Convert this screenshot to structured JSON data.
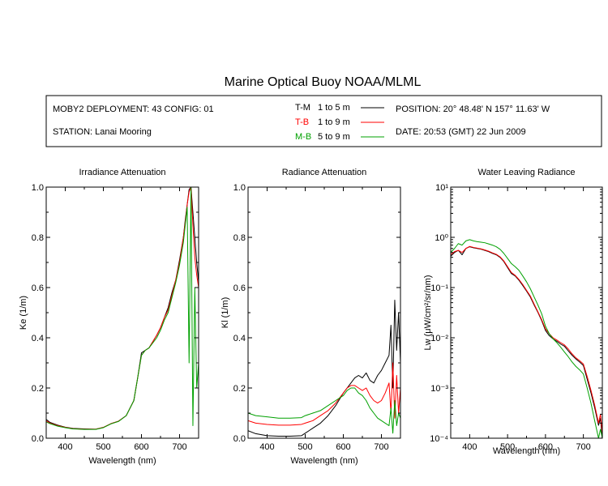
{
  "title": "Marine Optical Buoy NOAA/MLML",
  "info": {
    "deployment": "MOBY2 DEPLOYMENT: 43 CONFIG: 01",
    "station": "STATION: Lanai Mooring",
    "position": "POSITION: 20° 48.48' N   157° 11.63' W",
    "date": "DATE: 20:53 (GMT) 22 Jun 2009"
  },
  "legend": [
    {
      "code": "T-M",
      "range": "1 to 5  m",
      "color": "#000000"
    },
    {
      "code": "T-B",
      "range": "1 to 9  m",
      "color": "#ff0000"
    },
    {
      "code": "M-B",
      "range": "5 to 9  m",
      "color": "#00a000"
    }
  ],
  "chart_data": [
    {
      "type": "line",
      "title": "Irradiance Attenuation",
      "xlabel": "Wavelength (nm)",
      "ylabel": "Ke  (1/m)",
      "xlim": [
        350,
        750
      ],
      "ylim": [
        0,
        1
      ],
      "xticks": [
        400,
        500,
        600,
        700
      ],
      "yticks": [
        0,
        0.2,
        0.4,
        0.6,
        0.8,
        1.0
      ],
      "yticklabels": [
        "0.0",
        "0.2",
        "0.4",
        "0.6",
        "0.8",
        "1.0"
      ],
      "scale": "linear",
      "series": [
        {
          "legend_code": "T-M",
          "color": "#000000",
          "x": [
            350,
            360,
            380,
            400,
            420,
            450,
            480,
            500,
            520,
            540,
            560,
            580,
            590,
            600,
            610,
            620,
            640,
            650,
            660,
            670,
            680,
            690,
            700,
            710,
            715,
            720,
            725,
            730,
            735,
            740,
            745,
            750
          ],
          "y": [
            0.075,
            0.063,
            0.052,
            0.044,
            0.039,
            0.037,
            0.036,
            0.043,
            0.058,
            0.068,
            0.09,
            0.15,
            0.24,
            0.34,
            0.35,
            0.36,
            0.41,
            0.44,
            0.48,
            0.52,
            0.58,
            0.63,
            0.71,
            0.8,
            0.87,
            0.93,
            0.99,
            1.0,
            0.9,
            0.8,
            0.7,
            0.62
          ]
        },
        {
          "legend_code": "T-B",
          "color": "#ff0000",
          "x": [
            350,
            360,
            380,
            400,
            420,
            450,
            480,
            500,
            520,
            540,
            560,
            580,
            590,
            600,
            610,
            620,
            640,
            650,
            660,
            670,
            680,
            690,
            700,
            710,
            715,
            720,
            725,
            730,
            735,
            740,
            745,
            750
          ],
          "y": [
            0.07,
            0.06,
            0.05,
            0.043,
            0.038,
            0.036,
            0.036,
            0.043,
            0.058,
            0.068,
            0.09,
            0.15,
            0.24,
            0.33,
            0.35,
            0.36,
            0.41,
            0.44,
            0.48,
            0.51,
            0.57,
            0.63,
            0.7,
            0.8,
            0.86,
            0.93,
            0.98,
            1.0,
            0.85,
            0.72,
            0.65,
            0.6
          ]
        },
        {
          "legend_code": "M-B",
          "color": "#00a000",
          "x": [
            350,
            360,
            380,
            400,
            420,
            450,
            480,
            500,
            520,
            540,
            560,
            580,
            590,
            600,
            610,
            620,
            640,
            650,
            660,
            670,
            680,
            690,
            700,
            710,
            715,
            720,
            725,
            730,
            735,
            740,
            745,
            750
          ],
          "y": [
            0.065,
            0.058,
            0.048,
            0.042,
            0.037,
            0.035,
            0.035,
            0.042,
            0.057,
            0.067,
            0.09,
            0.15,
            0.24,
            0.33,
            0.35,
            0.36,
            0.4,
            0.43,
            0.47,
            0.5,
            0.56,
            0.62,
            0.69,
            0.78,
            0.85,
            0.92,
            0.3,
            1.0,
            0.05,
            0.6,
            0.2,
            0.3
          ]
        }
      ]
    },
    {
      "type": "line",
      "title": "Radiance Attenuation",
      "xlabel": "Wavelength (nm)",
      "ylabel": "Kl  (1/m)",
      "xlim": [
        350,
        750
      ],
      "ylim": [
        0,
        1
      ],
      "xticks": [
        400,
        500,
        600,
        700
      ],
      "yticks": [
        0,
        0.2,
        0.4,
        0.6,
        0.8,
        1.0
      ],
      "yticklabels": [
        "0.0",
        "0.2",
        "0.4",
        "0.6",
        "0.8",
        "1.0"
      ],
      "scale": "linear",
      "series": [
        {
          "legend_code": "T-M",
          "color": "#000000",
          "x": [
            350,
            370,
            400,
            430,
            460,
            490,
            500,
            520,
            540,
            560,
            580,
            600,
            610,
            620,
            630,
            640,
            650,
            660,
            670,
            680,
            690,
            700,
            710,
            720,
            725,
            730,
            735,
            740,
            745,
            750
          ],
          "y": [
            0.03,
            0.018,
            0.01,
            0.008,
            0.008,
            0.01,
            0.02,
            0.04,
            0.06,
            0.09,
            0.13,
            0.18,
            0.2,
            0.22,
            0.24,
            0.25,
            0.24,
            0.26,
            0.23,
            0.22,
            0.25,
            0.27,
            0.3,
            0.33,
            0.45,
            0.2,
            0.55,
            0.35,
            0.5,
            0.3
          ]
        },
        {
          "legend_code": "T-B",
          "color": "#ff0000",
          "x": [
            350,
            370,
            400,
            430,
            460,
            490,
            500,
            520,
            540,
            560,
            580,
            600,
            610,
            620,
            630,
            640,
            650,
            660,
            670,
            680,
            690,
            700,
            710,
            720,
            725,
            730,
            735,
            740,
            745,
            750
          ],
          "y": [
            0.07,
            0.06,
            0.055,
            0.052,
            0.052,
            0.055,
            0.06,
            0.07,
            0.09,
            0.11,
            0.14,
            0.18,
            0.2,
            0.21,
            0.21,
            0.2,
            0.19,
            0.2,
            0.17,
            0.15,
            0.14,
            0.15,
            0.18,
            0.22,
            0.1,
            0.3,
            0.08,
            0.25,
            0.1,
            0.2
          ]
        },
        {
          "legend_code": "M-B",
          "color": "#00a000",
          "x": [
            350,
            370,
            400,
            430,
            460,
            490,
            500,
            520,
            540,
            560,
            580,
            600,
            610,
            620,
            630,
            640,
            650,
            660,
            670,
            680,
            690,
            700,
            710,
            720,
            725,
            730,
            735,
            740,
            745,
            750
          ],
          "y": [
            0.1,
            0.09,
            0.085,
            0.08,
            0.08,
            0.082,
            0.09,
            0.1,
            0.11,
            0.13,
            0.15,
            0.17,
            0.19,
            0.2,
            0.2,
            0.18,
            0.17,
            0.15,
            0.12,
            0.1,
            0.08,
            0.07,
            0.06,
            0.05,
            0.12,
            0.02,
            0.15,
            0.05,
            0.1,
            0.08
          ]
        }
      ]
    },
    {
      "type": "line",
      "title": "Water Leaving Radiance",
      "xlabel": "Wavelength (nm)",
      "ylabel": "Lw  (μW/cm²/sr/nm)",
      "xlim": [
        350,
        750
      ],
      "ylim": [
        0.0001,
        10
      ],
      "xticks": [
        400,
        500,
        600,
        700
      ],
      "yticks": [
        0.0001,
        0.001,
        0.01,
        0.1,
        1,
        10
      ],
      "yticklabels": [
        "10⁻⁴",
        "10⁻³",
        "10⁻²",
        "10⁻¹",
        "10⁰",
        "10¹"
      ],
      "scale": "log",
      "series": [
        {
          "legend_code": "T-M",
          "color": "#000000",
          "x": [
            350,
            360,
            370,
            380,
            390,
            400,
            410,
            420,
            430,
            440,
            450,
            460,
            470,
            480,
            490,
            500,
            510,
            520,
            530,
            540,
            550,
            560,
            570,
            580,
            590,
            600,
            610,
            620,
            630,
            640,
            650,
            660,
            670,
            680,
            690,
            700,
            710,
            720,
            730,
            740,
            745,
            750
          ],
          "y": [
            0.42,
            0.5,
            0.55,
            0.45,
            0.6,
            0.65,
            0.62,
            0.6,
            0.58,
            0.55,
            0.52,
            0.48,
            0.45,
            0.4,
            0.33,
            0.25,
            0.19,
            0.17,
            0.14,
            0.11,
            0.085,
            0.065,
            0.045,
            0.032,
            0.022,
            0.014,
            0.011,
            0.0095,
            0.0085,
            0.0075,
            0.0068,
            0.0055,
            0.0045,
            0.0038,
            0.0033,
            0.0028,
            0.0015,
            0.0008,
            0.0004,
            0.00018,
            0.00025,
            0.0001
          ]
        },
        {
          "legend_code": "T-B",
          "color": "#ff0000",
          "x": [
            350,
            360,
            370,
            380,
            390,
            400,
            410,
            420,
            430,
            440,
            450,
            460,
            470,
            480,
            490,
            500,
            510,
            520,
            530,
            540,
            550,
            560,
            570,
            580,
            590,
            600,
            610,
            620,
            630,
            640,
            650,
            660,
            670,
            680,
            690,
            700,
            710,
            720,
            730,
            740,
            745,
            750
          ],
          "y": [
            0.45,
            0.52,
            0.55,
            0.5,
            0.6,
            0.66,
            0.63,
            0.61,
            0.59,
            0.56,
            0.53,
            0.49,
            0.46,
            0.41,
            0.34,
            0.26,
            0.2,
            0.175,
            0.145,
            0.115,
            0.088,
            0.068,
            0.047,
            0.033,
            0.023,
            0.015,
            0.012,
            0.01,
            0.009,
            0.008,
            0.0072,
            0.006,
            0.0048,
            0.004,
            0.0035,
            0.003,
            0.0017,
            0.0009,
            0.00045,
            0.0002,
            0.0003,
            0.00012
          ]
        },
        {
          "legend_code": "M-B",
          "color": "#00a000",
          "x": [
            350,
            360,
            370,
            380,
            390,
            400,
            410,
            420,
            430,
            440,
            450,
            460,
            470,
            480,
            490,
            500,
            510,
            520,
            530,
            540,
            550,
            560,
            570,
            580,
            590,
            600,
            610,
            620,
            630,
            640,
            650,
            660,
            670,
            680,
            690,
            700,
            710,
            720,
            730,
            740,
            745,
            750
          ],
          "y": [
            0.5,
            0.6,
            0.75,
            0.7,
            0.85,
            0.9,
            0.85,
            0.82,
            0.8,
            0.78,
            0.74,
            0.7,
            0.65,
            0.58,
            0.48,
            0.38,
            0.3,
            0.26,
            0.22,
            0.17,
            0.13,
            0.095,
            0.065,
            0.045,
            0.03,
            0.017,
            0.012,
            0.0095,
            0.008,
            0.0065,
            0.0052,
            0.0042,
            0.0033,
            0.0027,
            0.0023,
            0.0019,
            0.001,
            0.0005,
            0.00022,
            0.0001,
            0.00015,
            0.0001
          ]
        }
      ]
    }
  ]
}
